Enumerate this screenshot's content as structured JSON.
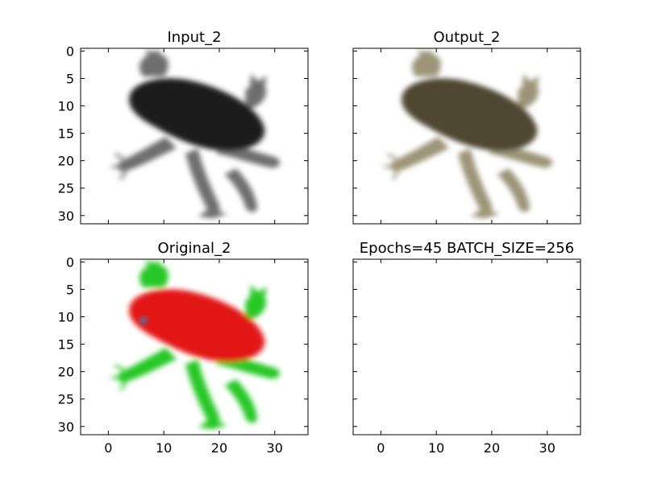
{
  "chart_data": [
    {
      "type": "image",
      "title": "Input_2",
      "image_kind": "grayscale",
      "xlim": [
        -5,
        36
      ],
      "ylim": [
        31.5,
        -0.5
      ],
      "xticks": [],
      "yticks": [
        0,
        5,
        10,
        15,
        20,
        25,
        30
      ],
      "xtick_labels": [],
      "ytick_labels": [
        "0",
        "5",
        "10",
        "15",
        "20",
        "25",
        "30"
      ]
    },
    {
      "type": "image",
      "title": "Output_2",
      "image_kind": "olive-tinted reconstruction",
      "xlim": [
        -5,
        36
      ],
      "ylim": [
        31.5,
        -0.5
      ],
      "xticks": [],
      "yticks": [],
      "xtick_labels": [],
      "ytick_labels": []
    },
    {
      "type": "image",
      "title": "Original_2",
      "image_kind": "color (red body, green legs)",
      "xlim": [
        -5,
        36
      ],
      "ylim": [
        31.5,
        -0.5
      ],
      "xticks": [
        0,
        10,
        20,
        30
      ],
      "yticks": [
        0,
        5,
        10,
        15,
        20,
        25,
        30
      ],
      "xtick_labels": [
        "0",
        "10",
        "20",
        "30"
      ],
      "ytick_labels": [
        "0",
        "5",
        "10",
        "15",
        "20",
        "25",
        "30"
      ]
    },
    {
      "type": "empty",
      "title": "Epochs=45 BATCH_SIZE=256",
      "xlim": [
        -5,
        36
      ],
      "ylim": [
        31.5,
        -0.5
      ],
      "xticks": [
        0,
        10,
        20,
        30
      ],
      "yticks": [],
      "xtick_labels": [
        "0",
        "10",
        "20",
        "30"
      ],
      "ytick_labels": []
    }
  ],
  "colors": {
    "input": {
      "body": "#1a1a1a",
      "leg": "#6e6e6e"
    },
    "output": {
      "body": "#4f4630",
      "leg": "#9c9478"
    },
    "original": {
      "body": "#e31212",
      "leg": "#28c828",
      "eye": "#5a6fa0"
    }
  }
}
